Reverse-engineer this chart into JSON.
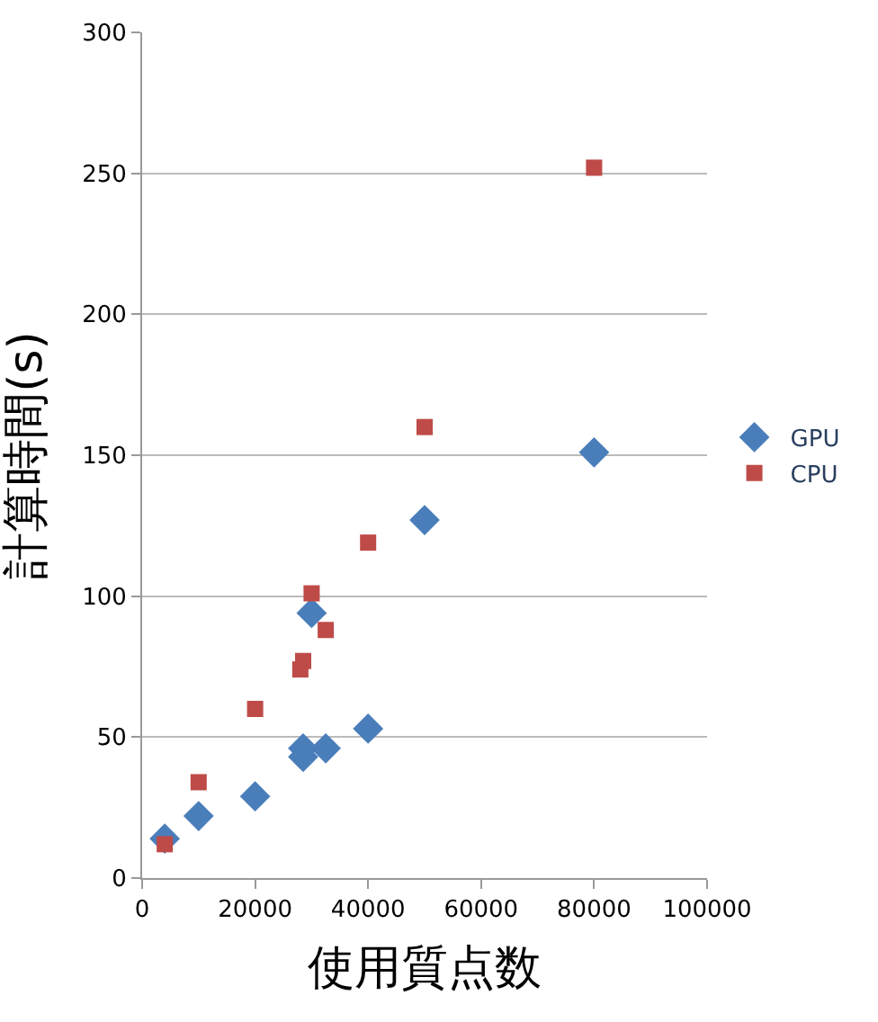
{
  "chart_data": {
    "type": "scatter",
    "xlabel": "使用質点数",
    "ylabel": "計算時間(s)",
    "xlim": [
      0,
      100000
    ],
    "xticks": [
      0,
      20000,
      40000,
      60000,
      80000,
      100000
    ],
    "ylim": [
      0,
      300
    ],
    "yticks": [
      0,
      50,
      100,
      150,
      200,
      250,
      300
    ],
    "grid": "y",
    "legend": "right",
    "series": [
      {
        "name": "GPU",
        "color": "#4a7ebb",
        "marker": "diamond",
        "x": [
          4000,
          10000,
          20000,
          28500,
          28500,
          30000,
          32500,
          40000,
          50000,
          80000
        ],
        "values": [
          14,
          22,
          29,
          43,
          46,
          94,
          46,
          53,
          127,
          151
        ]
      },
      {
        "name": "CPU",
        "color": "#be4b48",
        "marker": "square",
        "x": [
          4000,
          10000,
          20000,
          28000,
          28500,
          30000,
          32500,
          40000,
          50000,
          80000
        ],
        "values": [
          12,
          34,
          60,
          74,
          77,
          101,
          88,
          119,
          160,
          252
        ]
      }
    ]
  }
}
